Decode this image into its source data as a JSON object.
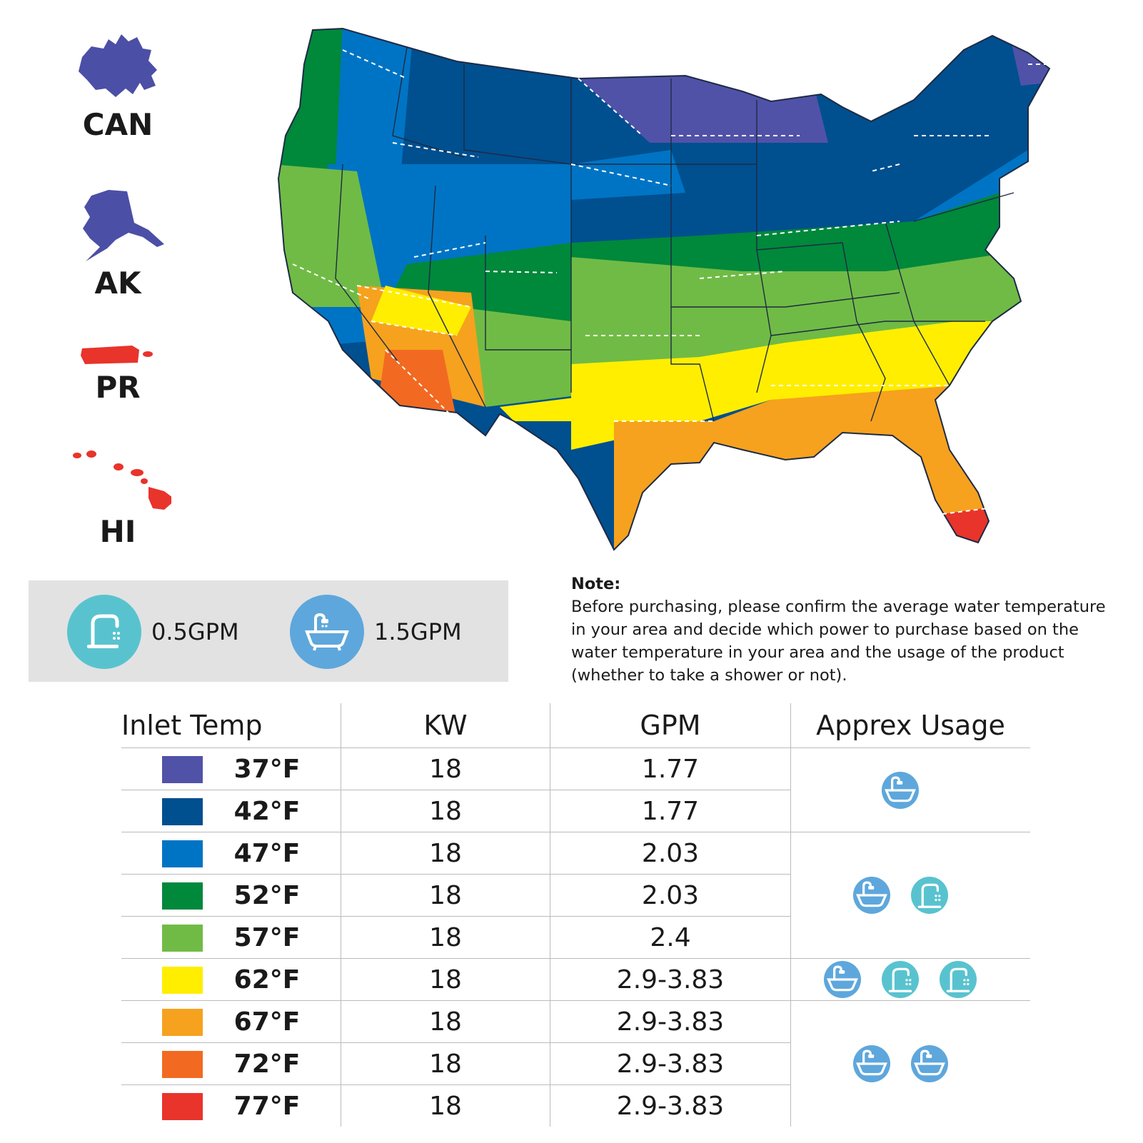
{
  "insets": [
    {
      "label": "CAN",
      "color": "#4b4fa6"
    },
    {
      "label": "AK",
      "color": "#4b4fa6"
    },
    {
      "label": "PR",
      "color": "#e8342b"
    },
    {
      "label": "HI",
      "color": "#e8342b"
    }
  ],
  "gpm_legend": [
    {
      "label": "0.5GPM",
      "icon": "faucet-icon",
      "color": "#58c3cf"
    },
    {
      "label": "1.5GPM",
      "icon": "bathtub-icon",
      "color": "#5ea7dc"
    }
  ],
  "note": {
    "title": "Note:",
    "body": "Before purchasing, please confirm the average water temperature in your area and decide which power to purchase based on the water temperature in your area and the usage of the product (whether to take a shower or not)."
  },
  "table": {
    "headers": [
      "Inlet Temp",
      "KW",
      "GPM",
      "Apprex Usage"
    ],
    "rows": [
      {
        "temp": "37°F",
        "kw": "18",
        "gpm": "1.77",
        "color": "#5052a8"
      },
      {
        "temp": "42°F",
        "kw": "18",
        "gpm": "1.77",
        "color": "#004f8f"
      },
      {
        "temp": "47°F",
        "kw": "18",
        "gpm": "2.03",
        "color": "#0074c4"
      },
      {
        "temp": "52°F",
        "kw": "18",
        "gpm": "2.03",
        "color": "#00883b"
      },
      {
        "temp": "57°F",
        "kw": "18",
        "gpm": "2.4",
        "color": "#70bb45"
      },
      {
        "temp": "62°F",
        "kw": "18",
        "gpm": "2.9-3.83",
        "color": "#ffee00"
      },
      {
        "temp": "67°F",
        "kw": "18",
        "gpm": "2.9-3.83",
        "color": "#f6a21e"
      },
      {
        "temp": "72°F",
        "kw": "18",
        "gpm": "2.9-3.83",
        "color": "#f26a21"
      },
      {
        "temp": "77°F",
        "kw": "18",
        "gpm": "2.9-3.83",
        "color": "#e8342b"
      }
    ],
    "usage_groups": [
      {
        "icons": [
          "bathtub-icon"
        ]
      },
      {
        "icons": [
          "bathtub-icon",
          "faucet-icon"
        ]
      },
      {
        "icons": [
          "bathtub-icon",
          "faucet-icon",
          "faucet-icon"
        ]
      },
      {
        "icons": [
          "bathtub-icon",
          "bathtub-icon"
        ]
      }
    ]
  }
}
